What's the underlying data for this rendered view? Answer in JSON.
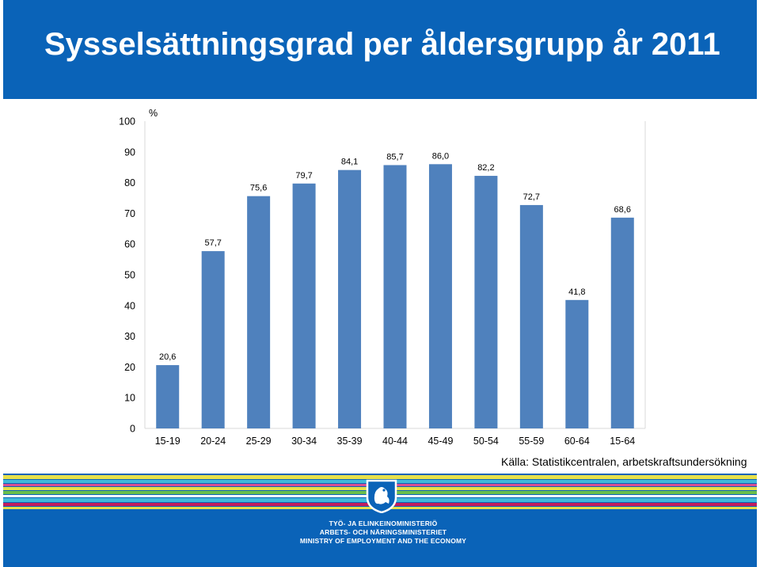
{
  "title": "Sysselsättningsgrad per åldersgrupp år 2011",
  "chart_data": {
    "type": "bar",
    "ylabel": "%",
    "xlabel": "",
    "ylim": [
      0,
      100
    ],
    "yticks": [
      0,
      10,
      20,
      30,
      40,
      50,
      60,
      70,
      80,
      90,
      100
    ],
    "categories": [
      "15-19",
      "20-24",
      "25-29",
      "30-34",
      "35-39",
      "40-44",
      "45-49",
      "50-54",
      "55-59",
      "60-64",
      "15-64"
    ],
    "values": [
      20.6,
      57.7,
      75.6,
      79.7,
      84.1,
      85.7,
      86.0,
      82.2,
      72.7,
      41.8,
      68.6
    ],
    "labels": [
      "20,6",
      "57,7",
      "75,6",
      "79,7",
      "84,1",
      "85,7",
      "86,0",
      "82,2",
      "72,7",
      "41,8",
      "68,6"
    ],
    "bar_color": "#4f81bd",
    "grid": false
  },
  "source": "Källa: Statistikcentralen, arbetskraftsundersökning",
  "footer": {
    "ministry_fi": "TYÖ- JA ELINKEINOMINISTERIÖ",
    "ministry_sv": "ARBETS- OCH NÄRINGSMINISTERIET",
    "ministry_en": "MINISTRY OF EMPLOYMENT AND THE ECONOMY"
  },
  "colors": {
    "header_blue": "#0a63b8",
    "stripes": [
      "#e6e04a",
      "#40b9d9",
      "#d64f93",
      "#ffffff",
      "#6bbf4a",
      "#c21d5e",
      "#3fa9d6"
    ]
  }
}
